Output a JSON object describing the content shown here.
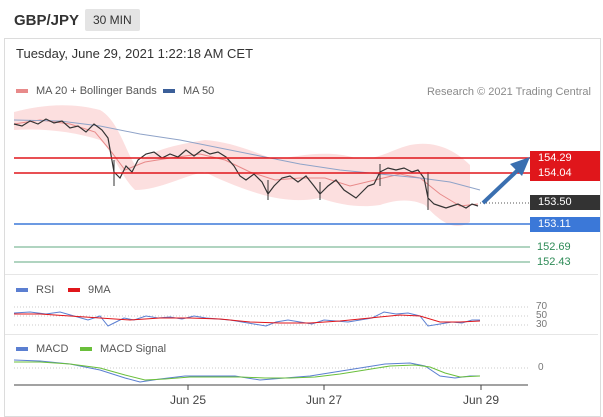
{
  "header": {
    "symbol": "GBP/JPY",
    "timeframe": "30 MIN"
  },
  "datetime": "Tuesday, June 29, 2021 1:22:18 AM CET",
  "legend": {
    "ma_bb": {
      "label": "MA 20 + Bollinger Bands",
      "color": "#e88a8a"
    },
    "ma50": {
      "label": "MA 50",
      "color": "#3b5f99"
    }
  },
  "copyright": "Research © 2021 Trading Central",
  "levels": {
    "r1": "154.29",
    "r2": "154.04",
    "current": "153.50",
    "s1": "153.11",
    "s2": "152.69",
    "s3": "152.43"
  },
  "rsi": {
    "legend_rsi": "RSI",
    "legend_9ma": "9MA",
    "ticks": [
      "70",
      "50",
      "30"
    ]
  },
  "macd": {
    "legend_macd": "MACD",
    "legend_signal": "MACD Signal",
    "tick_zero": "0"
  },
  "dates": [
    "Jun 25",
    "Jun 27",
    "Jun 29"
  ],
  "colors": {
    "resistance": "#e0161b",
    "support": "#3b78d8",
    "target": "#2e8b57",
    "current": "#333333",
    "arrow": "#3a6fb0"
  }
}
